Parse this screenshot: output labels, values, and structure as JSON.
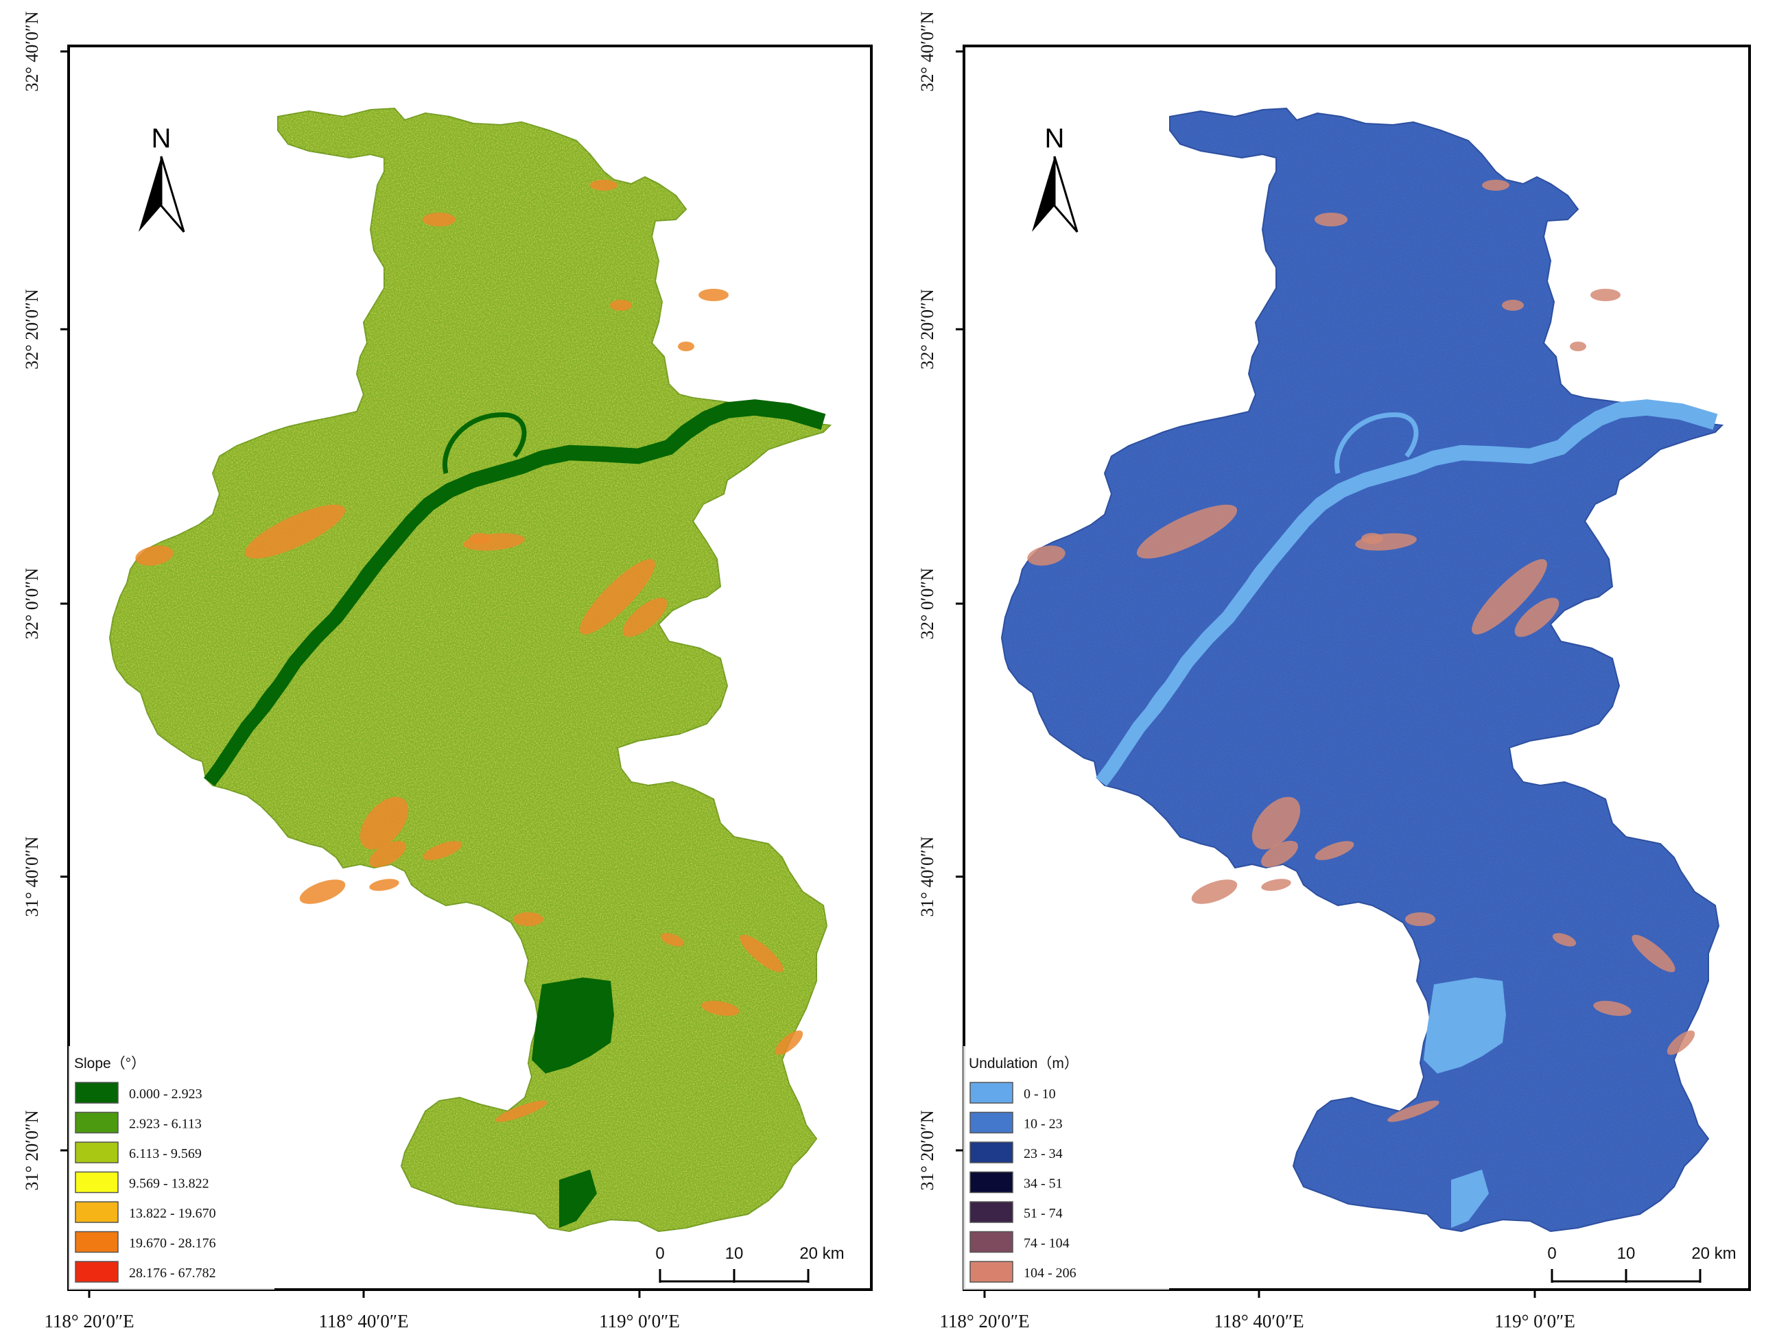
{
  "maps": [
    {
      "id": "slope",
      "legend": {
        "title": "Slope（°）",
        "items": [
          {
            "label": "0.000 - 2.923",
            "color": "#046604"
          },
          {
            "label": "2.923 - 6.113",
            "color": "#4c9a10"
          },
          {
            "label": "6.113 - 9.569",
            "color": "#a8c814"
          },
          {
            "label": "9.569 - 13.822",
            "color": "#fafc18"
          },
          {
            "label": "13.822 - 19.670",
            "color": "#f6b416"
          },
          {
            "label": "19.670 - 28.176",
            "color": "#f27a12"
          },
          {
            "label": "28.176 - 67.782",
            "color": "#ee2a10"
          }
        ]
      },
      "map_colors": {
        "base": "#86b028",
        "river": "#046604",
        "high": "#ec8a2c"
      }
    },
    {
      "id": "undulation",
      "legend": {
        "title": "Undulation（m）",
        "items": [
          {
            "label": "0 - 10",
            "color": "#64a8ec"
          },
          {
            "label": "10 - 23",
            "color": "#4478cc"
          },
          {
            "label": "23 - 34",
            "color": "#1e3a8a"
          },
          {
            "label": "34 - 51",
            "color": "#0a0a36"
          },
          {
            "label": "51 - 74",
            "color": "#3c2448"
          },
          {
            "label": "74 - 104",
            "color": "#7e4a5e"
          },
          {
            "label": "104 - 206",
            "color": "#d8826e"
          }
        ]
      },
      "map_colors": {
        "base": "#3c66c0",
        "river": "#6aaeec",
        "high": "#d48a74"
      }
    }
  ],
  "lat_labels": [
    "32° 40′0″N",
    "32° 20′0″N",
    "32° 0′0″N",
    "31° 40′0″N",
    "31° 20′0″N"
  ],
  "lon_labels": [
    "118° 20′0″E",
    "118° 40′0″E",
    "119° 0′0″E"
  ],
  "north_label": "N",
  "scale": {
    "ticks": [
      "0",
      "10",
      "20 km"
    ]
  }
}
